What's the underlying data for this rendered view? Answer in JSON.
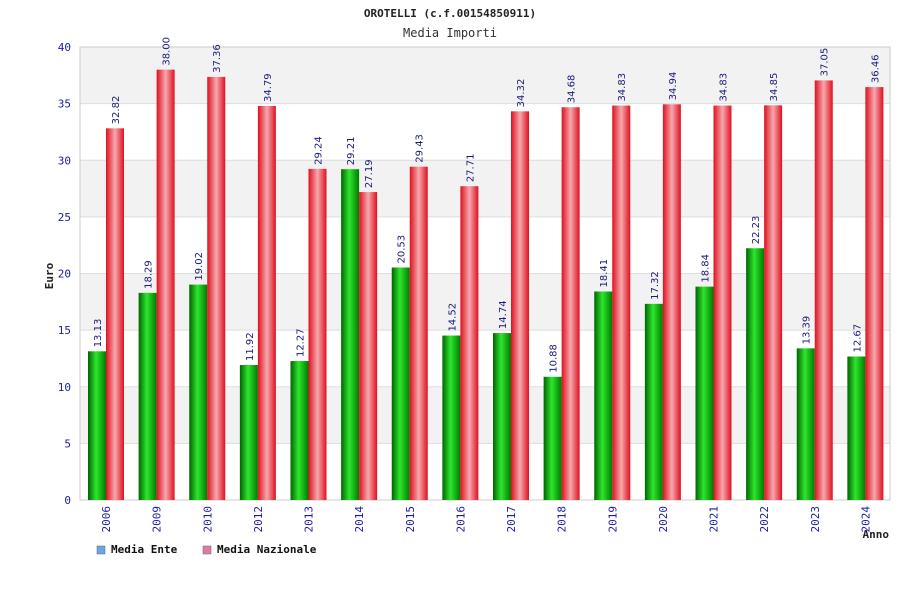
{
  "chart_data": {
    "type": "bar",
    "title": "OROTELLI (c.f.00154850911)",
    "subtitle": "Media Importi",
    "xlabel": "Anno",
    "ylabel": "Euro",
    "ylim": [
      0,
      40
    ],
    "yticks": [
      0,
      5,
      10,
      15,
      20,
      25,
      30,
      35,
      40
    ],
    "grid": true,
    "legend_position": "bottom-left",
    "categories": [
      "2006",
      "2009",
      "2010",
      "2012",
      "2013",
      "2014",
      "2015",
      "2016",
      "2017",
      "2018",
      "2019",
      "2020",
      "2021",
      "2022",
      "2023",
      "2024"
    ],
    "series": [
      {
        "name": "Media Ente",
        "bar_color": "#00a000",
        "legend_color": "#6aa6e8",
        "values": [
          13.13,
          18.29,
          19.02,
          11.92,
          12.27,
          29.21,
          20.53,
          14.52,
          14.74,
          10.88,
          18.41,
          17.32,
          18.84,
          22.23,
          13.39,
          12.67
        ]
      },
      {
        "name": "Media Nazionale",
        "bar_color": "#e8202a",
        "legend_color": "#e07aa8",
        "values": [
          32.82,
          38.0,
          37.36,
          34.79,
          29.24,
          27.19,
          29.43,
          27.71,
          34.32,
          34.68,
          34.83,
          34.94,
          34.83,
          34.85,
          37.05,
          36.46
        ]
      }
    ]
  }
}
